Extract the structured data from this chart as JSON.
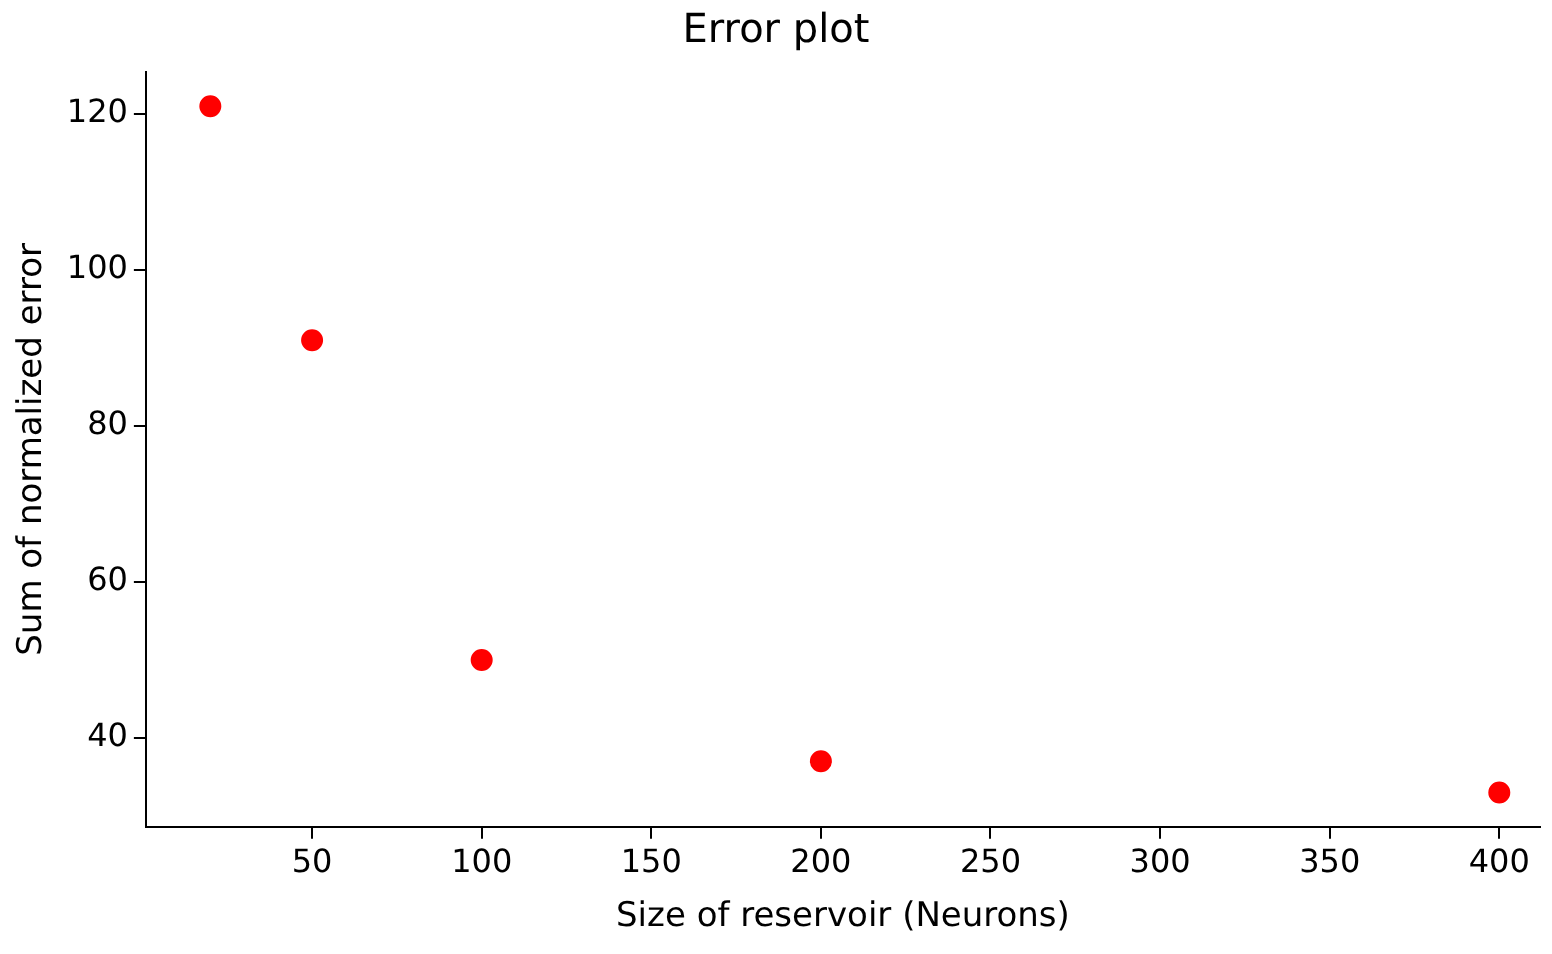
{
  "chart_data": {
    "type": "scatter",
    "title": "Error plot",
    "xlabel": "Size of reservoir (Neurons)",
    "ylabel": "Sum of normalized error",
    "x": [
      20,
      50,
      100,
      200,
      400
    ],
    "series": [
      {
        "color": "#ff0000",
        "values": [
          121,
          91,
          50,
          37,
          33
        ]
      }
    ],
    "xlim": [
      1,
      412
    ],
    "xticks": [
      50,
      100,
      150,
      200,
      250,
      300,
      350,
      400
    ],
    "ylim": [
      28.6,
      125.4
    ],
    "yticks": [
      40,
      60,
      80,
      100,
      120
    ],
    "grid": false,
    "legend": false,
    "marker": "circle"
  }
}
